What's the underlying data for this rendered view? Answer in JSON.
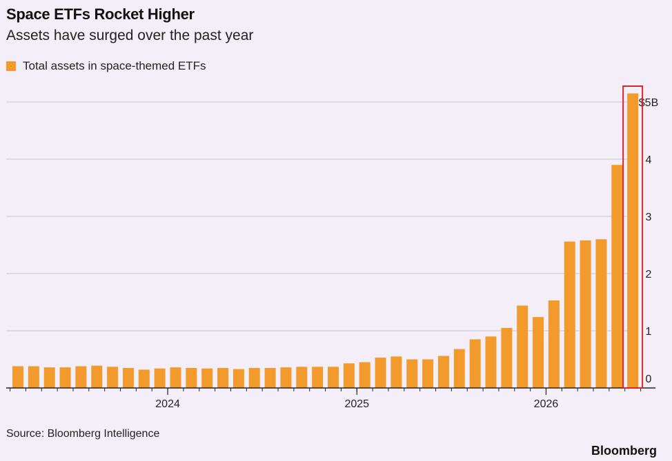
{
  "title": "Space ETFs Rocket Higher",
  "subtitle": "Assets have surged over the past year",
  "source": "Source: Bloomberg Intelligence",
  "brand": "Bloomberg",
  "colors": {
    "bar": "#f29b2c",
    "highlight_box": "#d62728",
    "grid": "#c9c3d0",
    "axis": "#222222",
    "background": "#f3eef7"
  },
  "chart_data": {
    "type": "bar",
    "title": "Space ETFs Rocket Higher",
    "subtitle": "Assets have surged over the past year",
    "legend": [
      "Total assets in space-themed ETFs"
    ],
    "legend_position": "top-left",
    "y_axis_position": "right",
    "grid": true,
    "ylim": [
      0,
      5
    ],
    "y_ticks": [
      {
        "value": 0,
        "label": "0"
      },
      {
        "value": 1,
        "label": "1"
      },
      {
        "value": 2,
        "label": "2"
      },
      {
        "value": 3,
        "label": "3"
      },
      {
        "value": 4,
        "label": "4"
      },
      {
        "value": 5,
        "label": "$5B"
      }
    ],
    "x_ticks": [
      {
        "after_bar": 10,
        "label": "2024"
      },
      {
        "after_bar": 22,
        "label": "2025"
      },
      {
        "after_bar": 34,
        "label": "2026"
      }
    ],
    "highlighted_bar": 39,
    "series": [
      {
        "name": "Total assets in space-themed ETFs",
        "values": [
          0.38,
          0.38,
          0.36,
          0.36,
          0.38,
          0.39,
          0.37,
          0.35,
          0.32,
          0.34,
          0.36,
          0.35,
          0.34,
          0.35,
          0.33,
          0.35,
          0.35,
          0.36,
          0.37,
          0.37,
          0.37,
          0.43,
          0.45,
          0.53,
          0.55,
          0.5,
          0.5,
          0.56,
          0.68,
          0.85,
          0.9,
          1.05,
          1.44,
          1.24,
          1.53,
          2.56,
          2.58,
          2.6,
          3.9,
          5.15
        ]
      }
    ]
  }
}
